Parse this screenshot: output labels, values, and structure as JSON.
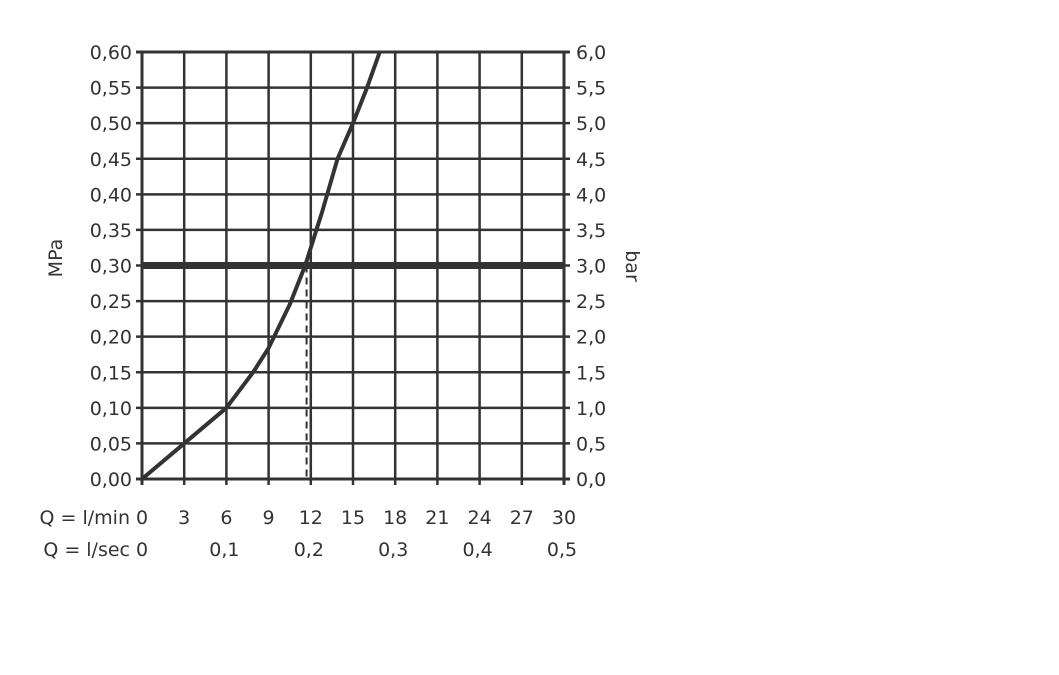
{
  "chart_data": {
    "type": "line",
    "ylabel_left": "MPa",
    "ylabel_right": "bar",
    "x_row_labels": [
      "Q = l/min",
      "Q = l/sec"
    ],
    "xlim": [
      0,
      30
    ],
    "ylim": [
      0,
      0.6
    ],
    "grid": true,
    "x_ticks": [
      "0",
      "3",
      "6",
      "9",
      "12",
      "15",
      "18",
      "21",
      "24",
      "27",
      "30"
    ],
    "x_ticks_lsec": [
      "0",
      "0,1",
      "0,2",
      "0,3",
      "0,4",
      "0,5"
    ],
    "y_ticks_left": [
      "0,00",
      "0,05",
      "0,10",
      "0,15",
      "0,20",
      "0,25",
      "0,30",
      "0,35",
      "0,40",
      "0,45",
      "0,50",
      "0,55",
      "0,60"
    ],
    "y_ticks_right": [
      "0,0",
      "0,5",
      "1,0",
      "1,5",
      "2,0",
      "2,5",
      "3,0",
      "3,5",
      "4,0",
      "4,5",
      "5,0",
      "5,5",
      "6,0"
    ],
    "reference_line_y": 0.3,
    "reference_drop_x": 11.7,
    "series": [
      {
        "x": [
          0,
          3,
          6,
          7.9,
          9,
          10.5,
          11.6,
          12.8,
          13.9,
          15.0,
          16.0,
          16.9
        ],
        "y": [
          0,
          0.05,
          0.1,
          0.15,
          0.184,
          0.245,
          0.3,
          0.375,
          0.45,
          0.5,
          0.55,
          0.6
        ]
      }
    ],
    "colors": {
      "line": "#333333",
      "grid": "#333333"
    }
  }
}
